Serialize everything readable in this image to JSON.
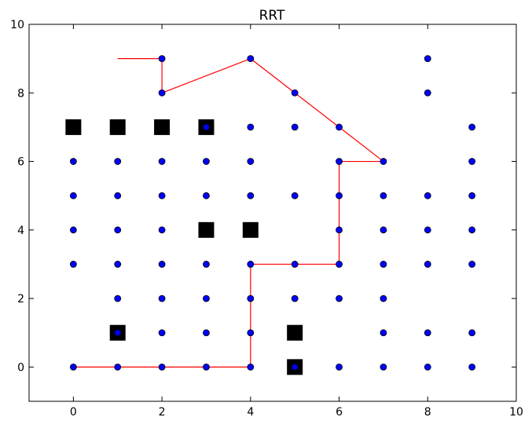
{
  "chart_data": {
    "type": "scatter",
    "title": "RRT",
    "xlabel": "",
    "ylabel": "",
    "xlim": [
      -1,
      10
    ],
    "ylim": [
      -1,
      10
    ],
    "x_ticks": [
      0,
      2,
      4,
      6,
      8,
      10
    ],
    "y_ticks": [
      0,
      2,
      4,
      6,
      8,
      10
    ],
    "grid": false,
    "colors": {
      "nodes": "#0000ff",
      "path": "#ff0000",
      "obstacles": "#000000"
    },
    "series": [
      {
        "type": "scatter",
        "marker": "circle",
        "points": [
          [
            0,
            0
          ],
          [
            1,
            0
          ],
          [
            2,
            0
          ],
          [
            3,
            0
          ],
          [
            4,
            0
          ],
          [
            5,
            0
          ],
          [
            6,
            0
          ],
          [
            7,
            0
          ],
          [
            8,
            0
          ],
          [
            9,
            0
          ],
          [
            1,
            1
          ],
          [
            2,
            1
          ],
          [
            3,
            1
          ],
          [
            4,
            1
          ],
          [
            7,
            1
          ],
          [
            8,
            1
          ],
          [
            9,
            1
          ],
          [
            1,
            2
          ],
          [
            2,
            2
          ],
          [
            3,
            2
          ],
          [
            4,
            2
          ],
          [
            5,
            2
          ],
          [
            6,
            2
          ],
          [
            7,
            2
          ],
          [
            0,
            3
          ],
          [
            1,
            3
          ],
          [
            2,
            3
          ],
          [
            3,
            3
          ],
          [
            4,
            3
          ],
          [
            5,
            3
          ],
          [
            6,
            3
          ],
          [
            7,
            3
          ],
          [
            8,
            3
          ],
          [
            9,
            3
          ],
          [
            0,
            4
          ],
          [
            1,
            4
          ],
          [
            2,
            4
          ],
          [
            6,
            4
          ],
          [
            7,
            4
          ],
          [
            8,
            4
          ],
          [
            9,
            4
          ],
          [
            0,
            5
          ],
          [
            1,
            5
          ],
          [
            2,
            5
          ],
          [
            3,
            5
          ],
          [
            4,
            5
          ],
          [
            5,
            5
          ],
          [
            6,
            5
          ],
          [
            7,
            5
          ],
          [
            8,
            5
          ],
          [
            9,
            5
          ],
          [
            0,
            6
          ],
          [
            1,
            6
          ],
          [
            2,
            6
          ],
          [
            3,
            6
          ],
          [
            4,
            6
          ],
          [
            6,
            6
          ],
          [
            7,
            6
          ],
          [
            9,
            6
          ],
          [
            3,
            7
          ],
          [
            4,
            7
          ],
          [
            5,
            7
          ],
          [
            6,
            7
          ],
          [
            9,
            7
          ],
          [
            2,
            8
          ],
          [
            5,
            8
          ],
          [
            8,
            8
          ],
          [
            2,
            9
          ],
          [
            4,
            9
          ],
          [
            8,
            9
          ]
        ]
      },
      {
        "type": "obstacles",
        "marker": "square",
        "points": [
          [
            0,
            7
          ],
          [
            1,
            7
          ],
          [
            2,
            7
          ],
          [
            3,
            7
          ],
          [
            3,
            4
          ],
          [
            4,
            4
          ],
          [
            1,
            1
          ],
          [
            5,
            1
          ],
          [
            5,
            0
          ]
        ]
      },
      {
        "type": "line",
        "points": [
          [
            0,
            0
          ],
          [
            1,
            0
          ],
          [
            2,
            0
          ],
          [
            3,
            0
          ],
          [
            4,
            0
          ],
          [
            4,
            1
          ],
          [
            4,
            2
          ],
          [
            4,
            3
          ],
          [
            5,
            3
          ],
          [
            6,
            3
          ],
          [
            6,
            4
          ],
          [
            6,
            5
          ],
          [
            6,
            6
          ],
          [
            7,
            6
          ],
          [
            6,
            7
          ],
          [
            5,
            8
          ],
          [
            4,
            9
          ],
          [
            2,
            8
          ],
          [
            2,
            9
          ],
          [
            1,
            9
          ]
        ]
      }
    ]
  }
}
